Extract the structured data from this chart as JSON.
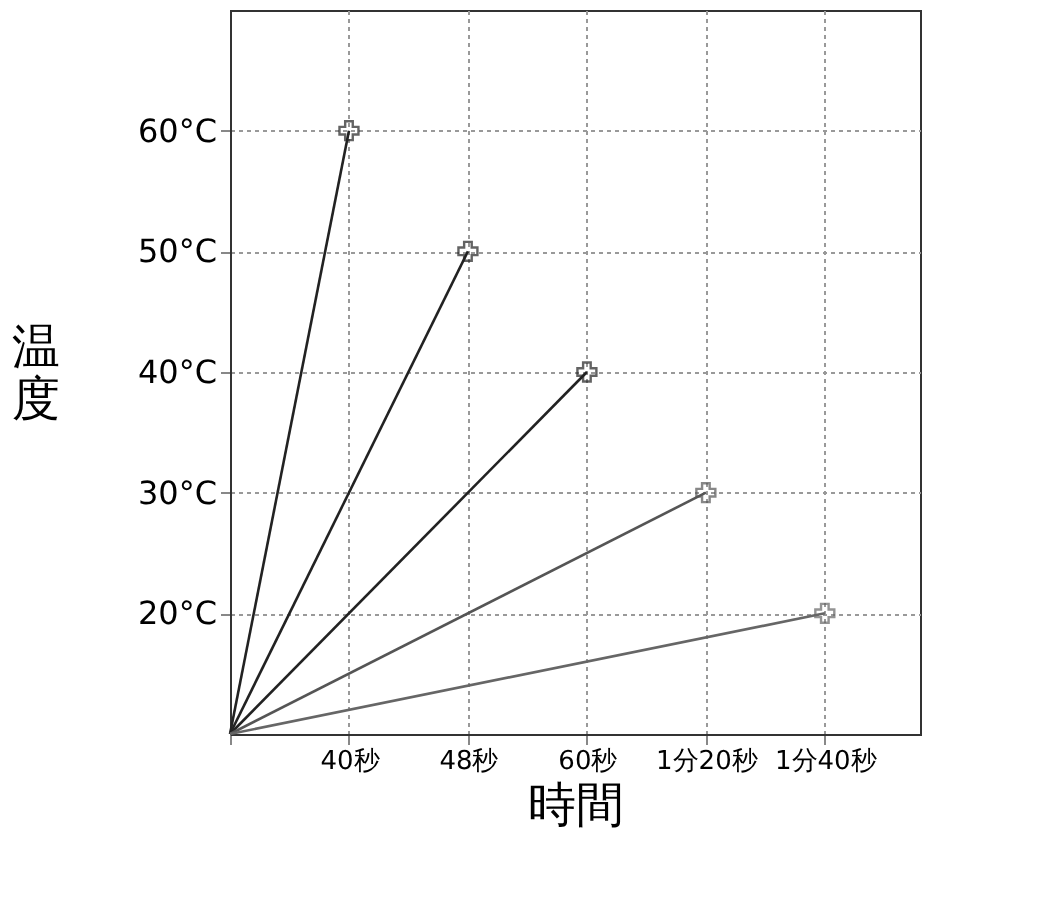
{
  "chart_data": {
    "type": "line",
    "xlabel": "時間",
    "ylabel": "温度",
    "categories": [
      null,
      "40秒",
      "48秒",
      "60秒",
      "1分20秒",
      "1分40秒"
    ],
    "series": [
      {
        "color": "#222222",
        "values": [
          10,
          60,
          null,
          null,
          null,
          null
        ]
      },
      {
        "color": "#222222",
        "values": [
          10,
          null,
          50,
          null,
          null,
          null
        ]
      },
      {
        "color": "#222222",
        "values": [
          10,
          null,
          null,
          40,
          null,
          null
        ]
      },
      {
        "color": "#555555",
        "values": [
          10,
          null,
          null,
          null,
          30,
          null
        ]
      },
      {
        "color": "#666666",
        "values": [
          10,
          null,
          null,
          null,
          null,
          20
        ]
      }
    ],
    "ylim": [
      10,
      70
    ],
    "yticks": [
      {
        "value": 20,
        "label": "20°C"
      },
      {
        "value": 30,
        "label": "30°C"
      },
      {
        "value": 40,
        "label": "40°C"
      },
      {
        "value": 50,
        "label": "50°C"
      },
      {
        "value": 60,
        "label": "60°C"
      }
    ],
    "grid": true,
    "marker": "cross",
    "line_style": "solid"
  }
}
